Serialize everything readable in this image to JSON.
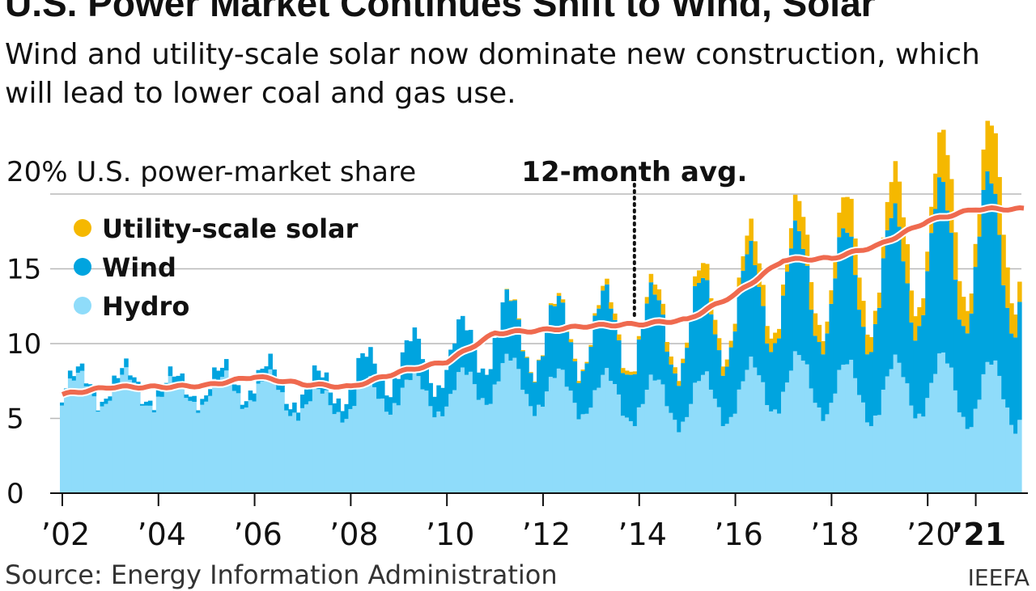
{
  "title": "U.S. Power Market Continues Shift to Wind, Solar",
  "subtitle": "Wind and utility-scale solar now dominate new construction, which will lead to lower coal and gas use.",
  "source": "Source: Energy Information Administration",
  "credit": "IEEFA",
  "chart_data": {
    "type": "area",
    "unit_label": "20% U.S. power-market share",
    "annotation": "12-month avg.",
    "annotation_year": 2013.9,
    "x_start": 2001.95,
    "x_end": 2021.95,
    "ylim": [
      0,
      20
    ],
    "yticks": [
      {
        "value": 0,
        "label": "0"
      },
      {
        "value": 5,
        "label": "5"
      },
      {
        "value": 10,
        "label": "10"
      },
      {
        "value": 15,
        "label": "15"
      }
    ],
    "xticks": [
      {
        "value": 2002,
        "label": "’02",
        "bold": false
      },
      {
        "value": 2004,
        "label": "’04",
        "bold": false
      },
      {
        "value": 2006,
        "label": "’06",
        "bold": false
      },
      {
        "value": 2008,
        "label": "’08",
        "bold": false
      },
      {
        "value": 2010,
        "label": "’10",
        "bold": false
      },
      {
        "value": 2012,
        "label": "’12",
        "bold": false
      },
      {
        "value": 2014,
        "label": "’14",
        "bold": false
      },
      {
        "value": 2016,
        "label": "’16",
        "bold": false
      },
      {
        "value": 2018,
        "label": "’18",
        "bold": false
      },
      {
        "value": 2020,
        "label": "’20",
        "bold": false
      },
      {
        "value": 2021,
        "label": "’21",
        "bold": true
      }
    ],
    "series": [
      {
        "name": "Utility-scale solar",
        "color": "#f5b800"
      },
      {
        "name": "Wind",
        "color": "#00a4df"
      },
      {
        "name": "Hydro",
        "color": "#8fdcfa"
      }
    ],
    "avg_color": "#ef6a4f",
    "annual": [
      {
        "year": 2002,
        "hydro": 6.7,
        "wind": 0.3,
        "solar": 0.0,
        "amp": 1.3,
        "avg": 6.6
      },
      {
        "year": 2003,
        "hydro": 7.0,
        "wind": 0.35,
        "solar": 0.0,
        "amp": 1.5,
        "avg": 7.1
      },
      {
        "year": 2004,
        "hydro": 6.6,
        "wind": 0.35,
        "solar": 0.0,
        "amp": 1.1,
        "avg": 7.1
      },
      {
        "year": 2005,
        "hydro": 6.7,
        "wind": 0.45,
        "solar": 0.0,
        "amp": 1.1,
        "avg": 7.2
      },
      {
        "year": 2006,
        "hydro": 7.1,
        "wind": 0.65,
        "solar": 0.0,
        "amp": 1.5,
        "avg": 7.8
      },
      {
        "year": 2007,
        "hydro": 5.9,
        "wind": 0.8,
        "solar": 0.0,
        "amp": 1.1,
        "avg": 7.3
      },
      {
        "year": 2008,
        "hydro": 6.1,
        "wind": 1.3,
        "solar": 0.0,
        "amp": 1.3,
        "avg": 7.1
      },
      {
        "year": 2009,
        "hydro": 6.9,
        "wind": 1.9,
        "solar": 0.0,
        "amp": 1.5,
        "avg": 8.1
      },
      {
        "year": 2010,
        "hydro": 6.3,
        "wind": 2.4,
        "solar": 0.0,
        "amp": 1.4,
        "avg": 8.8
      },
      {
        "year": 2011,
        "hydro": 7.9,
        "wind": 3.0,
        "solar": 0.0,
        "amp": 2.0,
        "avg": 10.7
      },
      {
        "year": 2012,
        "hydro": 6.8,
        "wind": 3.5,
        "solar": 0.1,
        "amp": 1.6,
        "avg": 10.9
      },
      {
        "year": 2013,
        "hydro": 6.6,
        "wind": 4.1,
        "solar": 0.2,
        "amp": 1.8,
        "avg": 11.2
      },
      {
        "year": 2014,
        "hydro": 6.2,
        "wind": 4.4,
        "solar": 0.4,
        "amp": 1.8,
        "avg": 11.3
      },
      {
        "year": 2015,
        "hydro": 6.1,
        "wind": 4.7,
        "solar": 0.6,
        "amp": 1.9,
        "avg": 11.6
      },
      {
        "year": 2016,
        "hydro": 6.5,
        "wind": 5.6,
        "solar": 0.9,
        "amp": 2.1,
        "avg": 13.3
      },
      {
        "year": 2017,
        "hydro": 7.5,
        "wind": 6.3,
        "solar": 1.3,
        "amp": 2.3,
        "avg": 15.6
      },
      {
        "year": 2018,
        "hydro": 7.0,
        "wind": 6.6,
        "solar": 1.6,
        "amp": 2.2,
        "avg": 15.7
      },
      {
        "year": 2019,
        "hydro": 6.6,
        "wind": 7.3,
        "solar": 1.8,
        "amp": 2.3,
        "avg": 16.6
      },
      {
        "year": 2020,
        "hydro": 7.3,
        "wind": 8.4,
        "solar": 2.3,
        "amp": 2.5,
        "avg": 18.2
      },
      {
        "year": 2021,
        "hydro": 6.6,
        "wind": 9.4,
        "solar": 2.7,
        "amp": 2.6,
        "avg": 19.0
      }
    ]
  }
}
